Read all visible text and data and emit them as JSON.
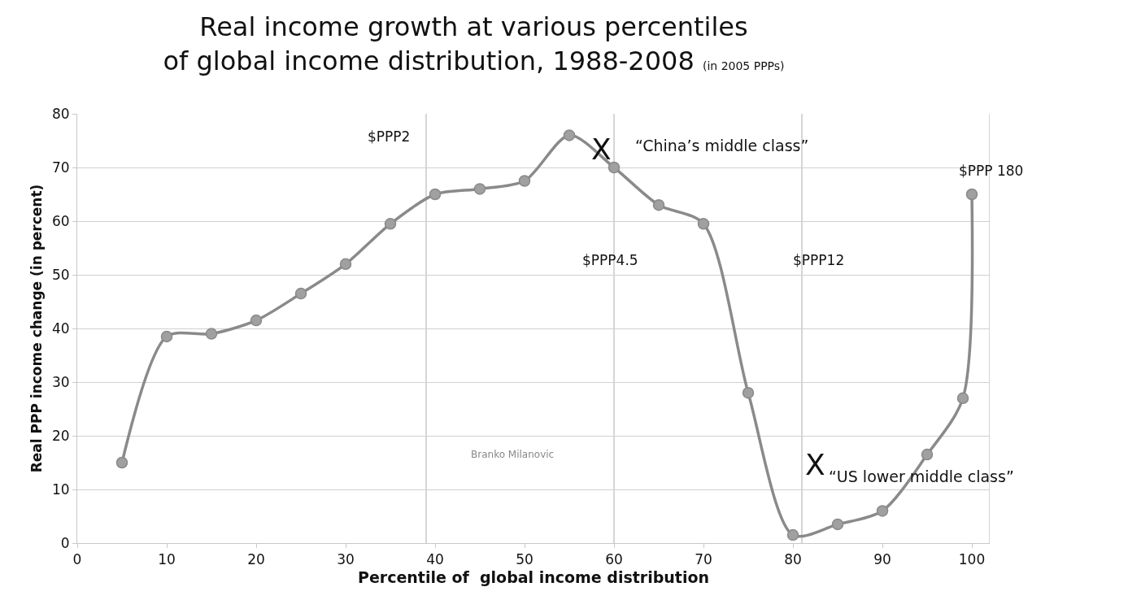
{
  "chart_data": {
    "type": "line",
    "title": "Real income growth at various percentiles\nof global income distribution, 1988-2008",
    "subtitle": "(in 2005 PPPs)",
    "xlabel": "Percentile of  global income distribution",
    "ylabel": "Real PPP income change (in percent)",
    "x": [
      5,
      10,
      15,
      20,
      25,
      30,
      35,
      40,
      45,
      50,
      55,
      60,
      65,
      70,
      75,
      80,
      85,
      90,
      95,
      99,
      100
    ],
    "series": [
      {
        "color": "#8a8a8a",
        "values": [
          15,
          38.5,
          39,
          41.5,
          46.5,
          52,
          59.5,
          65,
          66,
          67.5,
          76,
          70,
          63,
          59.5,
          28,
          1.5,
          3.5,
          6,
          16.5,
          27,
          65
        ]
      }
    ],
    "xlim": [
      0,
      102
    ],
    "xticks": [
      0,
      10,
      20,
      30,
      40,
      50,
      60,
      70,
      80,
      90,
      100
    ],
    "ylim": [
      0,
      80
    ],
    "yticks": [
      0,
      10,
      20,
      30,
      40,
      50,
      60,
      70,
      80
    ],
    "grid": "y",
    "marker": "circle",
    "line_style": "solid",
    "ref_lines": [
      {
        "axis": "x",
        "value": 39,
        "label": "$PPP2",
        "color": "#c8c8c8"
      },
      {
        "axis": "x",
        "value": 60,
        "label": "$PPP4.5",
        "color": "#c8c8c8"
      },
      {
        "axis": "x",
        "value": 81,
        "label": "$PPP12",
        "color": "#c8c8c8"
      },
      {
        "axis": "x",
        "value": 102,
        "label": "$PPP 180",
        "color": "#c8c8c8"
      }
    ],
    "annotations": [
      "X",
      "“China’s middle class”",
      "X",
      "“US lower middle class”",
      "Branko Milanovic"
    ]
  }
}
